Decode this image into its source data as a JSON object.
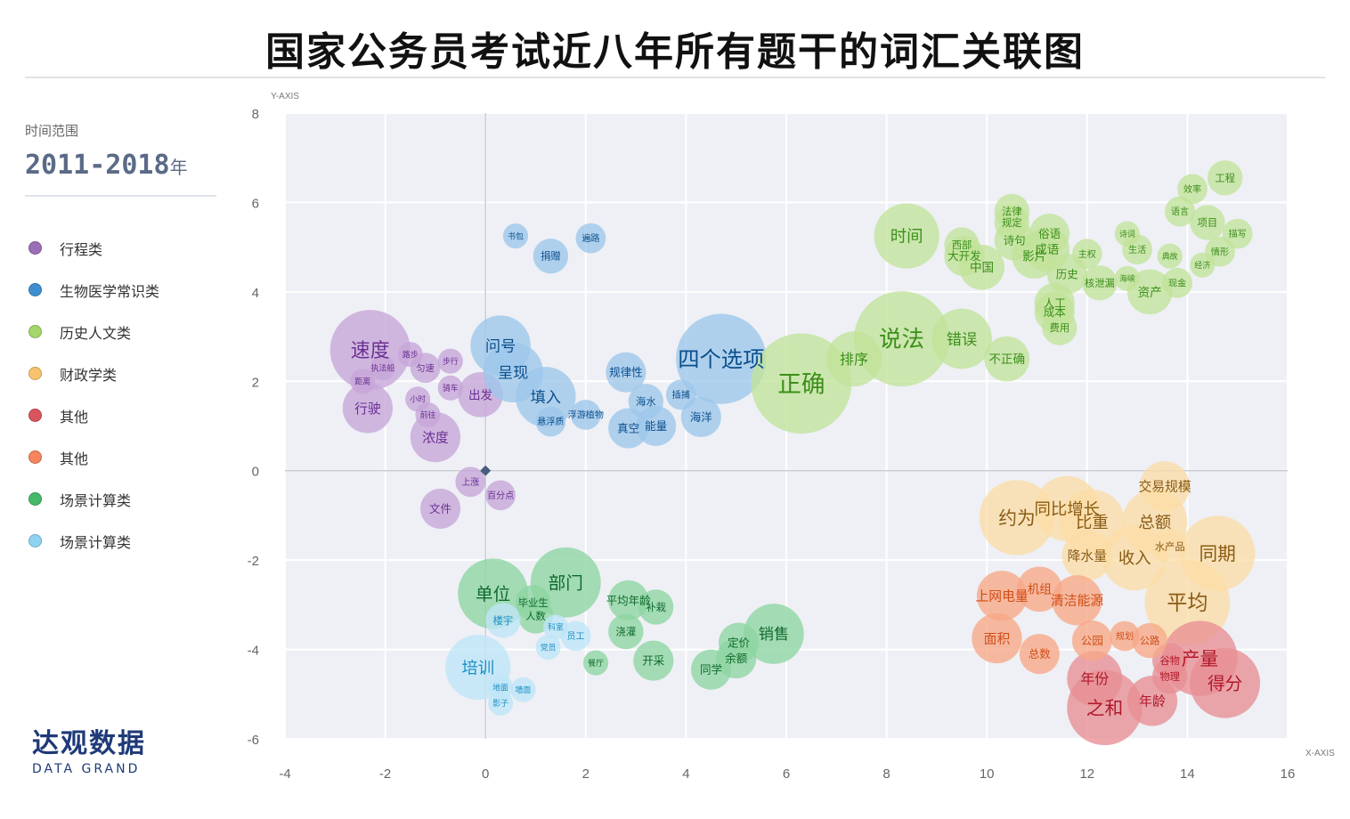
{
  "title": "国家公务员考试近八年所有题干的词汇关联图",
  "sidebar": {
    "range_label": "时间范围",
    "range_value": "2011-2018",
    "range_unit": "年"
  },
  "legend": [
    {
      "label": "行程类",
      "color": "#9b6fb5"
    },
    {
      "label": "生物医学常识类",
      "color": "#3e8fd1"
    },
    {
      "label": "历史人文类",
      "color": "#a5d66b"
    },
    {
      "label": "财政学类",
      "color": "#f7c36f"
    },
    {
      "label": "其他",
      "color": "#d9555e"
    },
    {
      "label": "其他",
      "color": "#f5855e"
    },
    {
      "label": "场景计算类",
      "color": "#46b86a"
    },
    {
      "label": "场景计算类",
      "color": "#8fd3f2"
    }
  ],
  "logo": {
    "cn": "达观数据",
    "en": "DATA GRAND"
  },
  "chart_data": {
    "type": "scatter",
    "xlabel": "X-AXIS",
    "ylabel": "Y-AXIS",
    "xlim": [
      -4,
      16
    ],
    "ylim": [
      -6,
      8
    ],
    "xticks": [
      -4,
      -2,
      0,
      2,
      4,
      6,
      8,
      10,
      12,
      14,
      16
    ],
    "yticks": [
      -6,
      -4,
      -2,
      0,
      2,
      4,
      6,
      8
    ],
    "grid": true,
    "origin_marker": [
      0,
      0
    ],
    "series": [
      {
        "name": "行程类",
        "fill": "#c6a5d9",
        "text": "#6a2f91",
        "points": [
          {
            "label": "速度",
            "x": -2.3,
            "y": 2.7,
            "r": 0.8
          },
          {
            "label": "路步",
            "x": -1.5,
            "y": 2.6,
            "r": 0.25
          },
          {
            "label": "步行",
            "x": -0.7,
            "y": 2.45,
            "r": 0.25
          },
          {
            "label": "执法船",
            "x": -2.05,
            "y": 2.3,
            "r": 0.25
          },
          {
            "label": "匀速",
            "x": -1.2,
            "y": 2.3,
            "r": 0.3
          },
          {
            "label": "距离",
            "x": -2.45,
            "y": 2.0,
            "r": 0.25
          },
          {
            "label": "骑车",
            "x": -0.7,
            "y": 1.85,
            "r": 0.25
          },
          {
            "label": "出发",
            "x": -0.1,
            "y": 1.7,
            "r": 0.45
          },
          {
            "label": "小时",
            "x": -1.35,
            "y": 1.6,
            "r": 0.25
          },
          {
            "label": "行驶",
            "x": -2.35,
            "y": 1.4,
            "r": 0.5
          },
          {
            "label": "前往",
            "x": -1.15,
            "y": 1.25,
            "r": 0.25
          },
          {
            "label": "浓度",
            "x": -1.0,
            "y": 0.75,
            "r": 0.5
          },
          {
            "label": "上涨",
            "x": -0.3,
            "y": -0.25,
            "r": 0.3
          },
          {
            "label": "百分点",
            "x": 0.3,
            "y": -0.55,
            "r": 0.3
          },
          {
            "label": "文件",
            "x": -0.9,
            "y": -0.85,
            "r": 0.4
          }
        ]
      },
      {
        "name": "生物医学常识类",
        "fill": "#9dc7ea",
        "text": "#0a4f8e",
        "points": [
          {
            "label": "书包",
            "x": 0.6,
            "y": 5.25,
            "r": 0.25
          },
          {
            "label": "遍路",
            "x": 2.1,
            "y": 5.2,
            "r": 0.3
          },
          {
            "label": "捐赠",
            "x": 1.3,
            "y": 4.8,
            "r": 0.35
          },
          {
            "label": "问号",
            "x": 0.3,
            "y": 2.8,
            "r": 0.6
          },
          {
            "label": "四个选项",
            "x": 4.7,
            "y": 2.5,
            "r": 0.9
          },
          {
            "label": "呈现",
            "x": 0.55,
            "y": 2.2,
            "r": 0.6
          },
          {
            "label": "规律性",
            "x": 2.8,
            "y": 2.2,
            "r": 0.4
          },
          {
            "label": "填入",
            "x": 1.2,
            "y": 1.65,
            "r": 0.6
          },
          {
            "label": "插捕",
            "x": 3.9,
            "y": 1.7,
            "r": 0.3
          },
          {
            "label": "海水",
            "x": 3.2,
            "y": 1.55,
            "r": 0.35
          },
          {
            "label": "浮游植物",
            "x": 2.0,
            "y": 1.25,
            "r": 0.3
          },
          {
            "label": "海洋",
            "x": 4.3,
            "y": 1.2,
            "r": 0.4
          },
          {
            "label": "悬浮质",
            "x": 1.3,
            "y": 1.1,
            "r": 0.3
          },
          {
            "label": "真空",
            "x": 2.85,
            "y": 0.95,
            "r": 0.4
          },
          {
            "label": "能量",
            "x": 3.4,
            "y": 1.0,
            "r": 0.4
          }
        ]
      },
      {
        "name": "历史人文类",
        "fill": "#c2e39a",
        "text": "#3c8f1a",
        "points": [
          {
            "label": "工程",
            "x": 14.75,
            "y": 6.55,
            "r": 0.35
          },
          {
            "label": "效率",
            "x": 14.1,
            "y": 6.3,
            "r": 0.3
          },
          {
            "label": "语言",
            "x": 13.85,
            "y": 5.8,
            "r": 0.3
          },
          {
            "label": "法律",
            "x": 10.5,
            "y": 5.8,
            "r": 0.35
          },
          {
            "label": "项目",
            "x": 14.4,
            "y": 5.55,
            "r": 0.35
          },
          {
            "label": "规定",
            "x": 10.5,
            "y": 5.55,
            "r": 0.35
          },
          {
            "label": "时间",
            "x": 8.4,
            "y": 5.25,
            "r": 0.65
          },
          {
            "label": "俗语",
            "x": 11.25,
            "y": 5.3,
            "r": 0.4
          },
          {
            "label": "诗词",
            "x": 12.8,
            "y": 5.3,
            "r": 0.25
          },
          {
            "label": "描写",
            "x": 15.0,
            "y": 5.3,
            "r": 0.3
          },
          {
            "label": "诗句",
            "x": 10.55,
            "y": 5.15,
            "r": 0.4
          },
          {
            "label": "西部",
            "x": 9.5,
            "y": 5.05,
            "r": 0.35
          },
          {
            "label": "成语",
            "x": 11.2,
            "y": 4.95,
            "r": 0.45
          },
          {
            "label": "生活",
            "x": 13.0,
            "y": 4.95,
            "r": 0.3
          },
          {
            "label": "情形",
            "x": 14.65,
            "y": 4.9,
            "r": 0.3
          },
          {
            "label": "大开发",
            "x": 9.55,
            "y": 4.8,
            "r": 0.4
          },
          {
            "label": "影片",
            "x": 10.95,
            "y": 4.8,
            "r": 0.45
          },
          {
            "label": "主权",
            "x": 12.0,
            "y": 4.85,
            "r": 0.3
          },
          {
            "label": "典故",
            "x": 13.65,
            "y": 4.8,
            "r": 0.25
          },
          {
            "label": "中国",
            "x": 9.9,
            "y": 4.55,
            "r": 0.45
          },
          {
            "label": "经济",
            "x": 14.3,
            "y": 4.6,
            "r": 0.25
          },
          {
            "label": "历史",
            "x": 11.6,
            "y": 4.4,
            "r": 0.4
          },
          {
            "label": "海峡",
            "x": 12.8,
            "y": 4.3,
            "r": 0.25
          },
          {
            "label": "核泄漏",
            "x": 12.25,
            "y": 4.2,
            "r": 0.35
          },
          {
            "label": "现金",
            "x": 13.8,
            "y": 4.2,
            "r": 0.3
          },
          {
            "label": "资产",
            "x": 13.25,
            "y": 4.0,
            "r": 0.45
          },
          {
            "label": "人工",
            "x": 11.35,
            "y": 3.75,
            "r": 0.4
          },
          {
            "label": "成本",
            "x": 11.35,
            "y": 3.55,
            "r": 0.4
          },
          {
            "label": "费用",
            "x": 11.45,
            "y": 3.2,
            "r": 0.35
          },
          {
            "label": "说法",
            "x": 8.3,
            "y": 2.95,
            "r": 0.95
          },
          {
            "label": "错误",
            "x": 9.5,
            "y": 2.95,
            "r": 0.6
          },
          {
            "label": "排序",
            "x": 7.35,
            "y": 2.5,
            "r": 0.55
          },
          {
            "label": "不正确",
            "x": 10.4,
            "y": 2.5,
            "r": 0.45
          },
          {
            "label": "正确",
            "x": 6.3,
            "y": 1.95,
            "r": 1.0
          }
        ]
      },
      {
        "name": "财政学类",
        "fill": "#fbdca6",
        "text": "#8a5b14",
        "points": [
          {
            "label": "交易规模",
            "x": 13.55,
            "y": -0.35,
            "r": 0.5
          },
          {
            "label": "约为",
            "x": 10.6,
            "y": -1.05,
            "r": 0.75
          },
          {
            "label": "同比增长",
            "x": 11.6,
            "y": -0.85,
            "r": 0.65
          },
          {
            "label": "比重",
            "x": 12.1,
            "y": -1.15,
            "r": 0.65
          },
          {
            "label": "总额",
            "x": 13.35,
            "y": -1.15,
            "r": 0.65
          },
          {
            "label": "水产品",
            "x": 13.65,
            "y": -1.7,
            "r": 0.35
          },
          {
            "label": "降水量",
            "x": 12.0,
            "y": -1.9,
            "r": 0.5
          },
          {
            "label": "收入",
            "x": 12.95,
            "y": -1.95,
            "r": 0.65
          },
          {
            "label": "同期",
            "x": 14.6,
            "y": -1.85,
            "r": 0.75
          },
          {
            "label": "平均",
            "x": 14.0,
            "y": -2.95,
            "r": 0.85
          }
        ]
      },
      {
        "name": "其他",
        "fill": "#e88e94",
        "text": "#b0182a",
        "points": [
          {
            "label": "产量",
            "x": 14.25,
            "y": -4.2,
            "r": 0.75
          },
          {
            "label": "谷物",
            "x": 13.65,
            "y": -4.25,
            "r": 0.35
          },
          {
            "label": "物理",
            "x": 13.65,
            "y": -4.6,
            "r": 0.35
          },
          {
            "label": "年份",
            "x": 12.15,
            "y": -4.65,
            "r": 0.55
          },
          {
            "label": "得分",
            "x": 14.75,
            "y": -4.75,
            "r": 0.7
          },
          {
            "label": "年龄",
            "x": 13.3,
            "y": -5.15,
            "r": 0.5
          },
          {
            "label": "之和",
            "x": 12.35,
            "y": -5.3,
            "r": 0.75
          }
        ]
      },
      {
        "name": "其他",
        "fill": "#f7a887",
        "text": "#d14d17",
        "points": [
          {
            "label": "上网电量",
            "x": 10.3,
            "y": -2.8,
            "r": 0.5
          },
          {
            "label": "机组",
            "x": 11.05,
            "y": -2.65,
            "r": 0.45
          },
          {
            "label": "清洁能源",
            "x": 11.8,
            "y": -2.9,
            "r": 0.5
          },
          {
            "label": "面积",
            "x": 10.2,
            "y": -3.75,
            "r": 0.5
          },
          {
            "label": "规划",
            "x": 12.75,
            "y": -3.7,
            "r": 0.3
          },
          {
            "label": "公园",
            "x": 12.1,
            "y": -3.8,
            "r": 0.4
          },
          {
            "label": "公路",
            "x": 13.25,
            "y": -3.8,
            "r": 0.35
          },
          {
            "label": "总数",
            "x": 11.05,
            "y": -4.1,
            "r": 0.4
          }
        ]
      },
      {
        "name": "场景计算类",
        "fill": "#8dd5a2",
        "text": "#106a2d",
        "points": [
          {
            "label": "部门",
            "x": 1.6,
            "y": -2.5,
            "r": 0.7
          },
          {
            "label": "单位",
            "x": 0.15,
            "y": -2.75,
            "r": 0.7
          },
          {
            "label": "平均年龄",
            "x": 2.85,
            "y": -2.9,
            "r": 0.4
          },
          {
            "label": "毕业生",
            "x": 0.95,
            "y": -2.95,
            "r": 0.35
          },
          {
            "label": "补栽",
            "x": 3.4,
            "y": -3.05,
            "r": 0.35
          },
          {
            "label": "人数",
            "x": 1.0,
            "y": -3.25,
            "r": 0.35
          },
          {
            "label": "浇灌",
            "x": 2.8,
            "y": -3.6,
            "r": 0.35
          },
          {
            "label": "销售",
            "x": 5.75,
            "y": -3.65,
            "r": 0.6
          },
          {
            "label": "定价",
            "x": 5.05,
            "y": -3.85,
            "r": 0.4
          },
          {
            "label": "开采",
            "x": 3.35,
            "y": -4.25,
            "r": 0.4
          },
          {
            "label": "余额",
            "x": 5.0,
            "y": -4.2,
            "r": 0.4
          },
          {
            "label": "餐厅",
            "x": 2.2,
            "y": -4.3,
            "r": 0.25
          },
          {
            "label": "同学",
            "x": 4.5,
            "y": -4.45,
            "r": 0.4
          }
        ]
      },
      {
        "name": "场景计算类",
        "fill": "#bfe6f7",
        "text": "#1a8fc4",
        "points": [
          {
            "label": "楼宇",
            "x": 0.35,
            "y": -3.35,
            "r": 0.35
          },
          {
            "label": "科室",
            "x": 1.4,
            "y": -3.5,
            "r": 0.25
          },
          {
            "label": "员工",
            "x": 1.8,
            "y": -3.7,
            "r": 0.3
          },
          {
            "label": "党员",
            "x": 1.25,
            "y": -3.95,
            "r": 0.25
          },
          {
            "label": "培训",
            "x": -0.15,
            "y": -4.4,
            "r": 0.65
          },
          {
            "label": "地面",
            "x": 0.3,
            "y": -4.85,
            "r": 0.25
          },
          {
            "label": "墙面",
            "x": 0.75,
            "y": -4.9,
            "r": 0.25
          },
          {
            "label": "影子",
            "x": 0.3,
            "y": -5.2,
            "r": 0.25
          }
        ]
      }
    ]
  }
}
